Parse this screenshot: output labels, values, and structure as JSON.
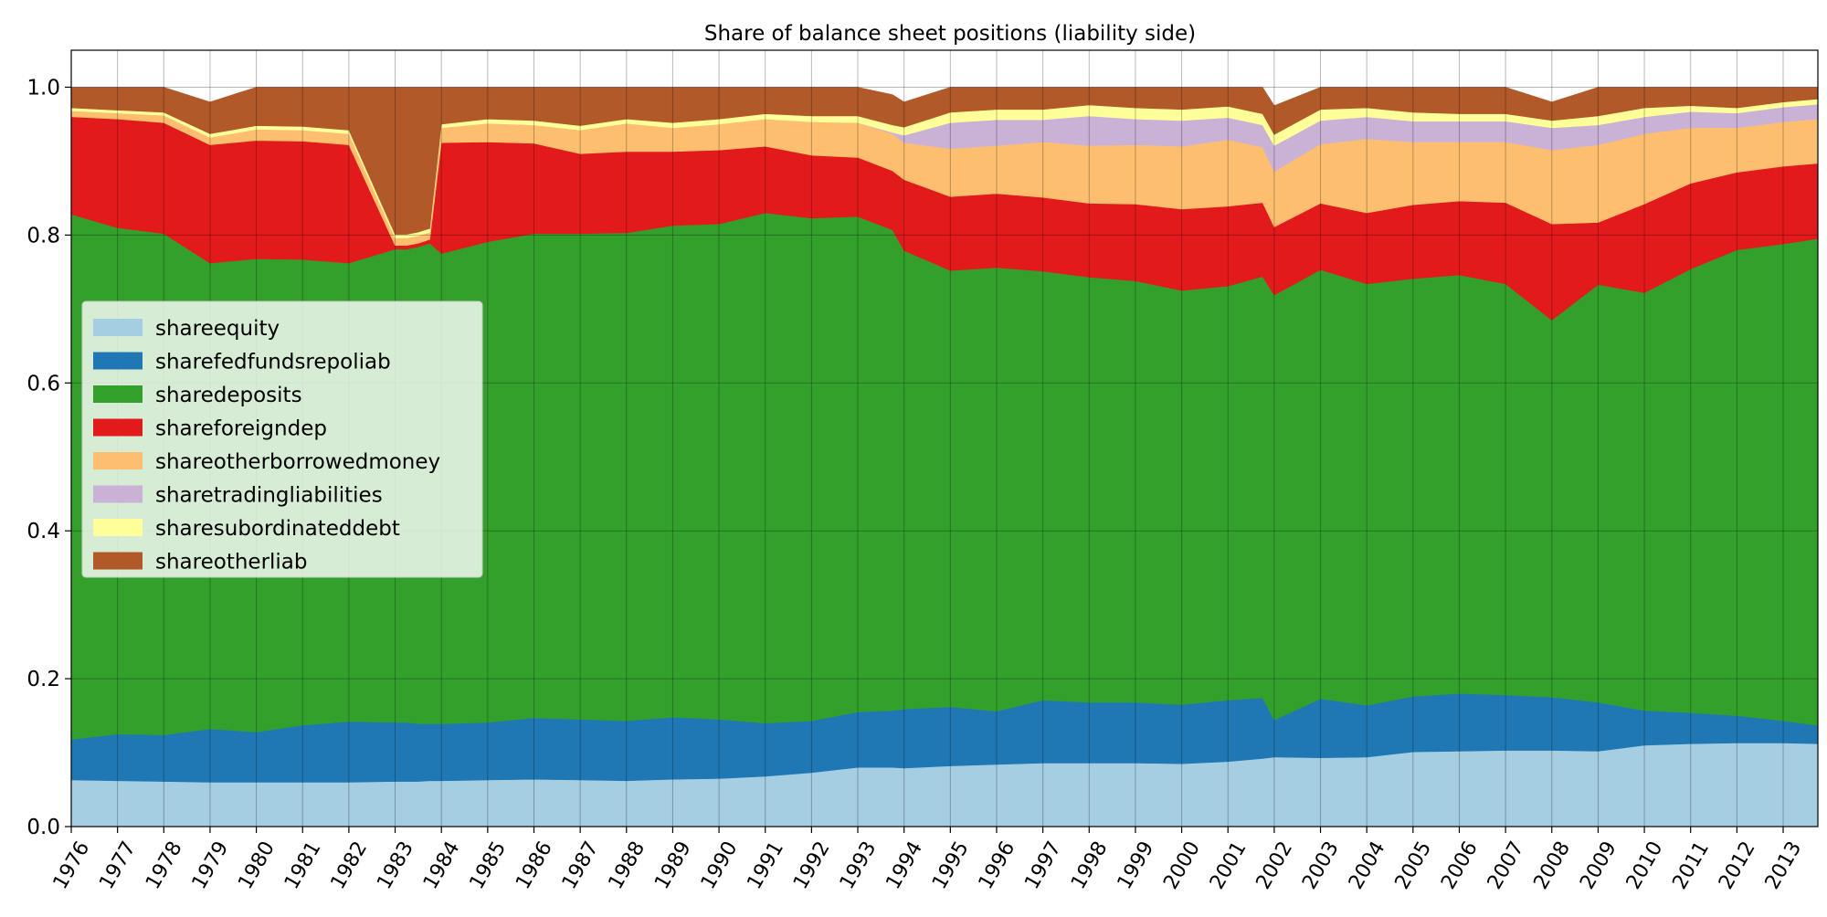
{
  "chart_data": {
    "type": "area",
    "stacked": true,
    "title": "Share of balance sheet positions (liability side)",
    "xlabel": "",
    "ylabel": "",
    "ylim": [
      0,
      1.05
    ],
    "xlim": [
      1976,
      2013.75
    ],
    "grid": true,
    "legend_position": "center-left",
    "y_ticks": [
      "0.0",
      "0.2",
      "0.4",
      "0.6",
      "0.8",
      "1.0"
    ],
    "x_ticks": [
      "1976",
      "1977",
      "1978",
      "1979",
      "1980",
      "1981",
      "1982",
      "1983",
      "1984",
      "1985",
      "1986",
      "1987",
      "1988",
      "1989",
      "1990",
      "1991",
      "1992",
      "1993",
      "1994",
      "1995",
      "1996",
      "1997",
      "1998",
      "1999",
      "2000",
      "2001",
      "2002",
      "2003",
      "2004",
      "2005",
      "2006",
      "2007",
      "2008",
      "2009",
      "2010",
      "2011",
      "2012",
      "2013"
    ],
    "x": [
      1976,
      1977,
      1978,
      1979,
      1980,
      1981,
      1982,
      1983,
      1983.25,
      1983.5,
      1983.75,
      1984,
      1985,
      1986,
      1987,
      1988,
      1989,
      1990,
      1991,
      1992,
      1993,
      1993.75,
      1994,
      1995,
      1996,
      1997,
      1998,
      1999,
      2000,
      2001,
      2001.75,
      2002,
      2003,
      2004,
      2005,
      2006,
      2007,
      2008,
      2009,
      2010,
      2011,
      2012,
      2013,
      2013.75
    ],
    "series": [
      {
        "name": "shareequity",
        "color": "#a6cee3",
        "values": [
          0.063,
          0.062,
          0.061,
          0.06,
          0.06,
          0.06,
          0.06,
          0.061,
          0.061,
          0.061,
          0.062,
          0.062,
          0.063,
          0.064,
          0.063,
          0.062,
          0.064,
          0.065,
          0.068,
          0.073,
          0.08,
          0.08,
          0.079,
          0.082,
          0.084,
          0.086,
          0.086,
          0.086,
          0.085,
          0.088,
          0.092,
          0.094,
          0.093,
          0.094,
          0.101,
          0.102,
          0.103,
          0.103,
          0.102,
          0.11,
          0.112,
          0.113,
          0.113,
          0.112
        ]
      },
      {
        "name": "sharefedfundsrepoliab",
        "color": "#1f78b4",
        "values": [
          0.055,
          0.063,
          0.063,
          0.072,
          0.068,
          0.077,
          0.082,
          0.08,
          0.08,
          0.078,
          0.077,
          0.077,
          0.078,
          0.083,
          0.082,
          0.081,
          0.084,
          0.08,
          0.072,
          0.07,
          0.075,
          0.077,
          0.08,
          0.08,
          0.072,
          0.085,
          0.082,
          0.082,
          0.08,
          0.083,
          0.082,
          0.05,
          0.08,
          0.07,
          0.075,
          0.078,
          0.075,
          0.072,
          0.066,
          0.047,
          0.042,
          0.037,
          0.03,
          0.025
        ]
      },
      {
        "name": "sharedeposits",
        "color": "#33a02c",
        "values": [
          0.71,
          0.685,
          0.678,
          0.63,
          0.64,
          0.63,
          0.62,
          0.64,
          0.64,
          0.645,
          0.65,
          0.636,
          0.65,
          0.655,
          0.657,
          0.66,
          0.665,
          0.67,
          0.69,
          0.68,
          0.67,
          0.65,
          0.62,
          0.59,
          0.6,
          0.58,
          0.575,
          0.57,
          0.56,
          0.56,
          0.57,
          0.575,
          0.58,
          0.57,
          0.565,
          0.566,
          0.556,
          0.51,
          0.565,
          0.565,
          0.6,
          0.63,
          0.645,
          0.658
        ]
      },
      {
        "name": "shareforeigndep",
        "color": "#e31a1c",
        "values": [
          0.132,
          0.147,
          0.15,
          0.16,
          0.16,
          0.16,
          0.16,
          0.005,
          0.005,
          0.005,
          0.005,
          0.15,
          0.135,
          0.122,
          0.108,
          0.11,
          0.1,
          0.1,
          0.09,
          0.085,
          0.08,
          0.08,
          0.096,
          0.1,
          0.1,
          0.1,
          0.1,
          0.104,
          0.11,
          0.108,
          0.1,
          0.092,
          0.09,
          0.096,
          0.1,
          0.1,
          0.11,
          0.13,
          0.084,
          0.12,
          0.116,
          0.105,
          0.105,
          0.102
        ]
      },
      {
        "name": "shareotherborrowedmoney",
        "color": "#fdbf6f",
        "values": [
          0.008,
          0.008,
          0.01,
          0.01,
          0.015,
          0.015,
          0.015,
          0.01,
          0.01,
          0.01,
          0.01,
          0.02,
          0.025,
          0.025,
          0.032,
          0.038,
          0.032,
          0.035,
          0.037,
          0.045,
          0.047,
          0.05,
          0.05,
          0.065,
          0.065,
          0.075,
          0.078,
          0.08,
          0.085,
          0.09,
          0.075,
          0.075,
          0.08,
          0.1,
          0.085,
          0.08,
          0.082,
          0.1,
          0.105,
          0.095,
          0.075,
          0.06,
          0.06,
          0.06
        ]
      },
      {
        "name": "sharetradingliabilities",
        "color": "#cab2d6",
        "values": [
          0,
          0,
          0,
          0,
          0,
          0,
          0,
          0,
          0,
          0,
          0,
          0,
          0,
          0,
          0,
          0,
          0,
          0,
          0,
          0,
          0,
          0.002,
          0.01,
          0.035,
          0.035,
          0.03,
          0.04,
          0.035,
          0.035,
          0.03,
          0.03,
          0.035,
          0.032,
          0.03,
          0.028,
          0.028,
          0.028,
          0.03,
          0.027,
          0.023,
          0.022,
          0.02,
          0.02,
          0.02
        ]
      },
      {
        "name": "sharesubordinateddebt",
        "color": "#ffff99",
        "values": [
          0.004,
          0.004,
          0.004,
          0.005,
          0.005,
          0.005,
          0.005,
          0.005,
          0.005,
          0.005,
          0.005,
          0.005,
          0.006,
          0.006,
          0.006,
          0.006,
          0.007,
          0.007,
          0.007,
          0.008,
          0.009,
          0.01,
          0.011,
          0.014,
          0.014,
          0.014,
          0.015,
          0.015,
          0.015,
          0.015,
          0.015,
          0.015,
          0.015,
          0.012,
          0.012,
          0.01,
          0.01,
          0.01,
          0.012,
          0.012,
          0.008,
          0.007,
          0.007,
          0.007
        ]
      },
      {
        "name": "shareotherliab",
        "color": "#b15928",
        "values": [
          0.028,
          0.031,
          0.034,
          0.043,
          0.052,
          0.053,
          0.058,
          0.199,
          0.199,
          0.196,
          0.191,
          0.05,
          0.043,
          0.045,
          0.052,
          0.043,
          0.048,
          0.043,
          0.036,
          0.039,
          0.039,
          0.041,
          0.034,
          0.034,
          0.03,
          0.03,
          0.024,
          0.028,
          0.03,
          0.026,
          0.036,
          0.039,
          0.03,
          0.028,
          0.034,
          0.036,
          0.036,
          0.025,
          0.039,
          0.028,
          0.025,
          0.028,
          0.02,
          0.016
        ]
      }
    ]
  }
}
